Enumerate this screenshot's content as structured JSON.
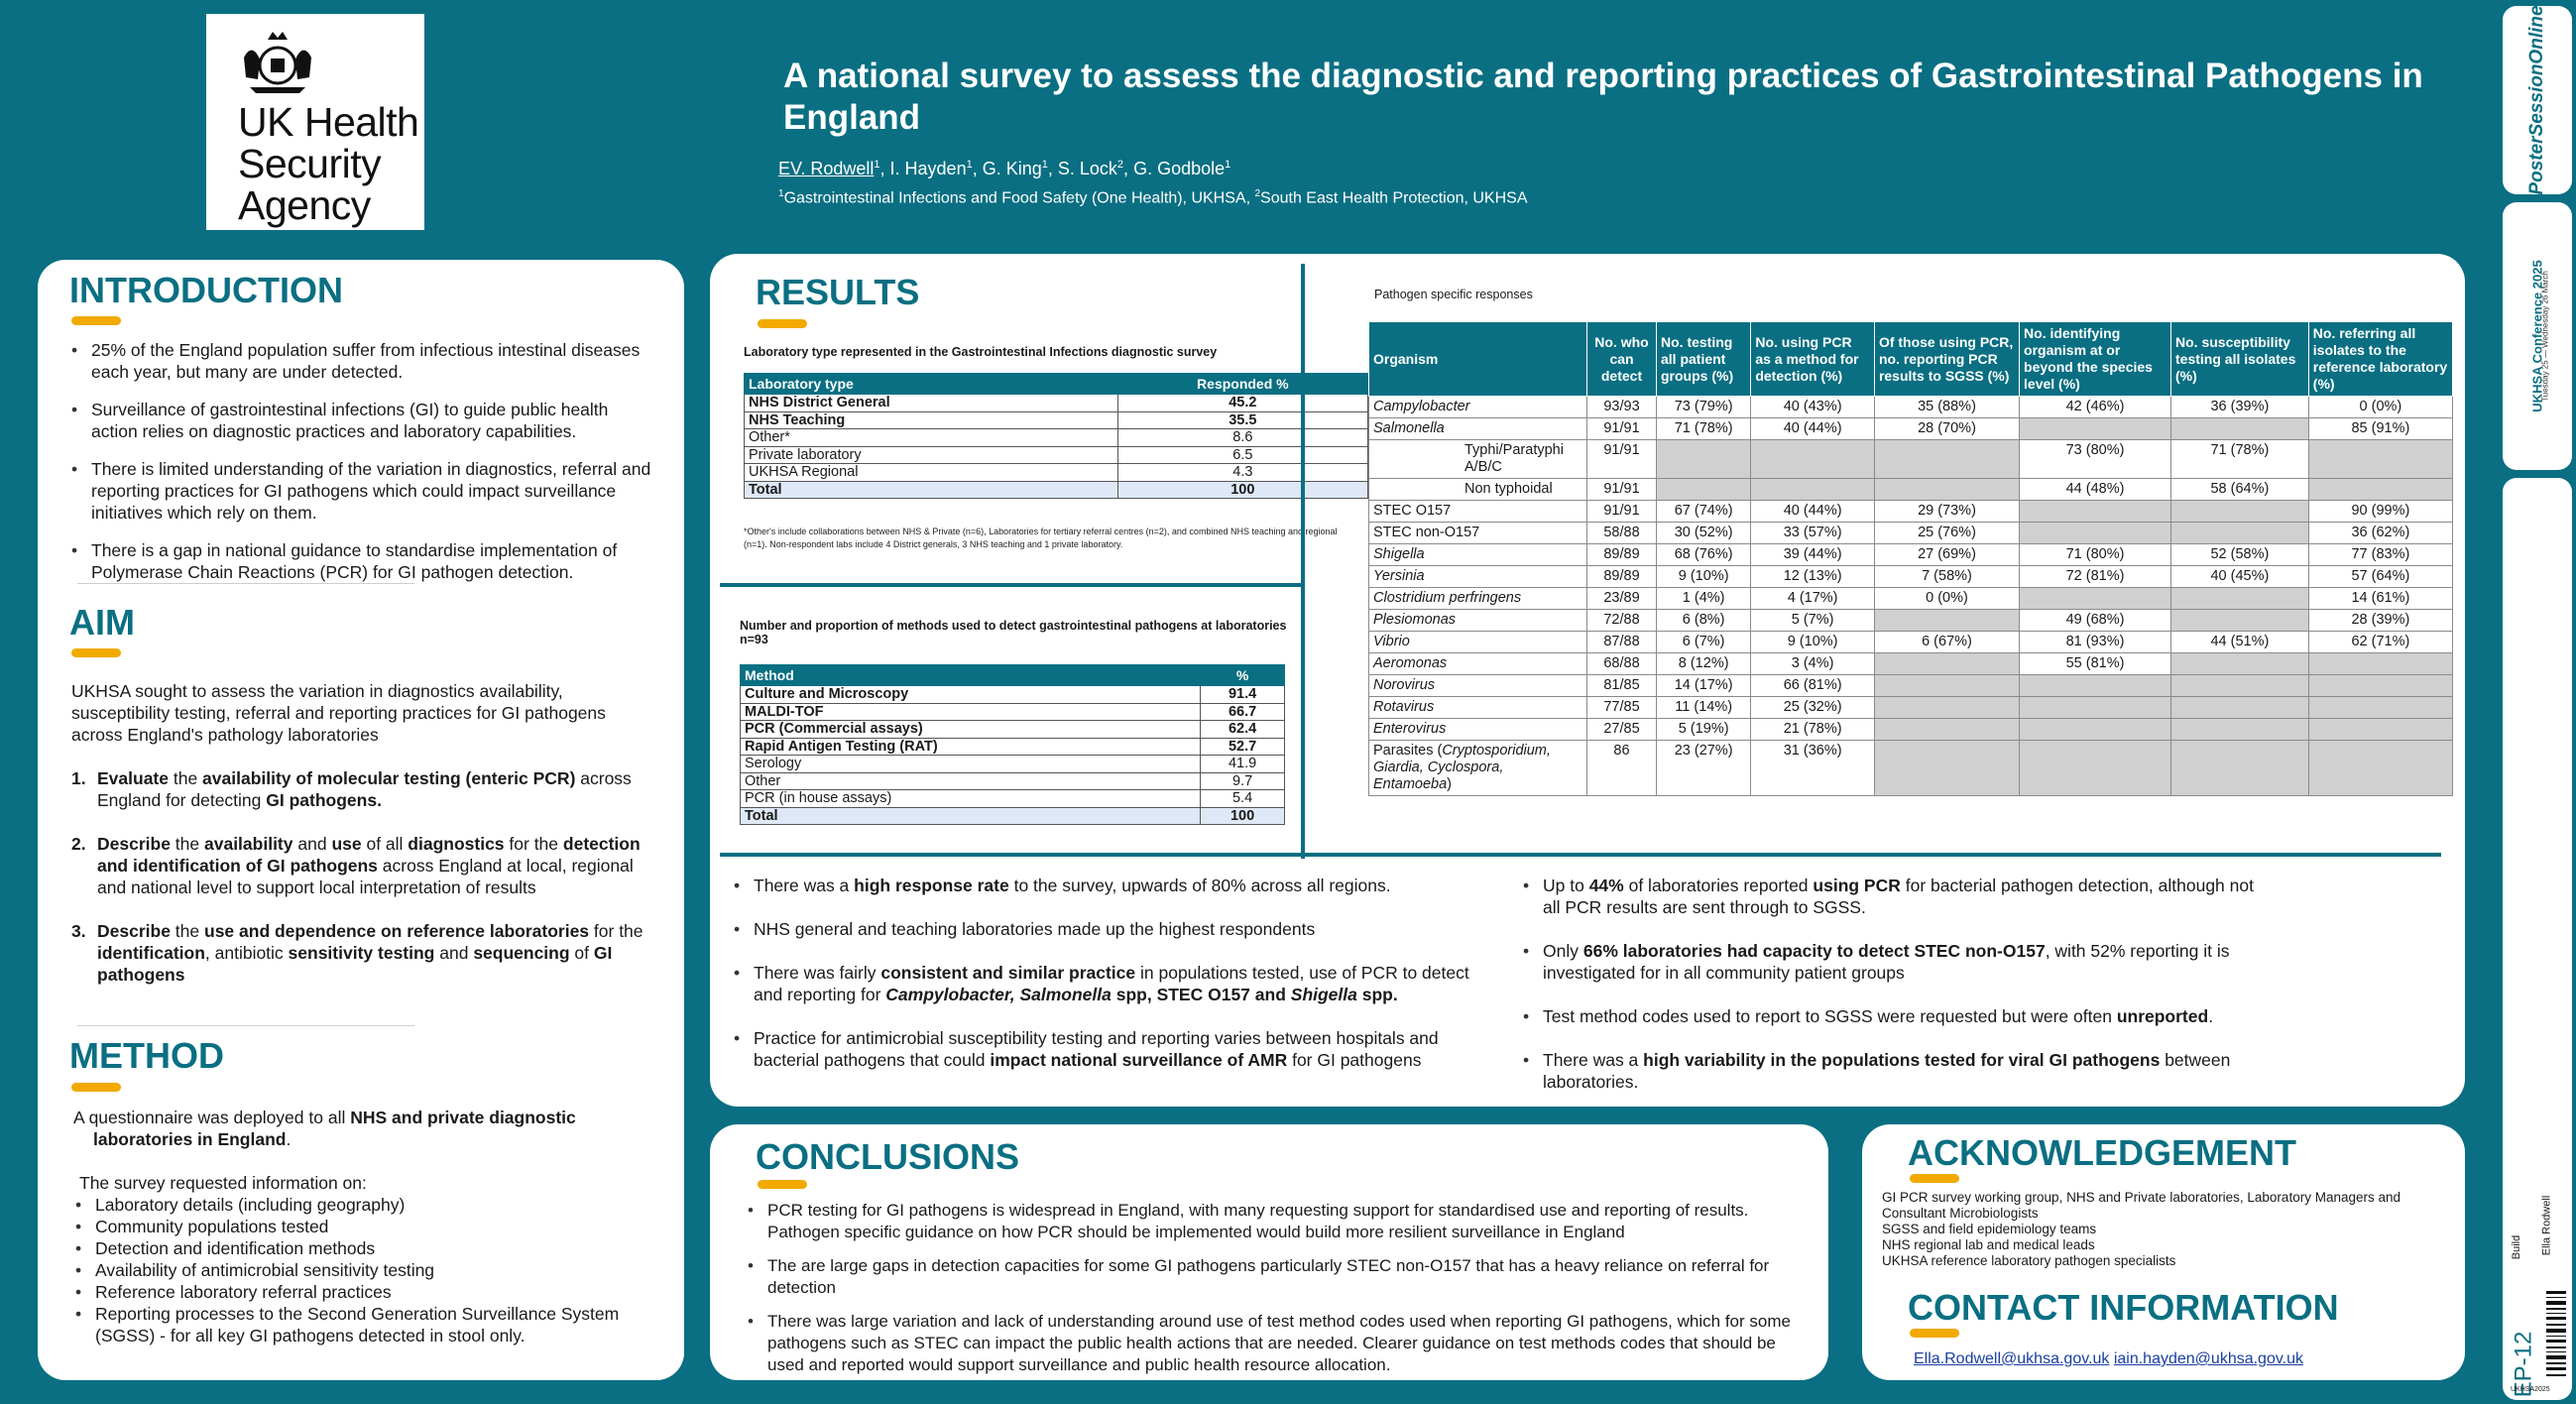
{
  "header": {
    "logo_text": "UK Health\nSecurity\nAgency",
    "title": "A national survey to assess the diagnostic and reporting practices of Gastrointestinal Pathogens in England",
    "authors": [
      {
        "name": "EV. Rodwell",
        "sup": "1"
      },
      {
        "name": "I. Hayden",
        "sup": "1"
      },
      {
        "name": "G. King",
        "sup": "1"
      },
      {
        "name": "S. Lock",
        "sup": "2"
      },
      {
        "name": "G. Godbole",
        "sup": "1"
      }
    ],
    "affiliations": [
      {
        "sup": "1",
        "text": "Gastrointestinal Infections and Food Safety (One Health), UKHSA, "
      },
      {
        "sup": "2",
        "text": "South East Health Protection, UKHSA"
      }
    ]
  },
  "introduction": {
    "heading": "INTRODUCTION",
    "bullets": [
      "25% of the England population suffer from infectious intestinal diseases each year, but many are under detected.",
      "Surveillance of gastrointestinal infections (GI) to guide public health action relies on diagnostic practices and laboratory capabilities.",
      "There is limited understanding of the variation in diagnostics, referral and reporting practices for GI pathogens which could impact surveillance initiatives which rely on them.",
      "There is a gap in national guidance to standardise implementation of Polymerase Chain Reactions (PCR) for GI pathogen detection."
    ]
  },
  "aim": {
    "heading": "AIM",
    "intro": "UKHSA sought to assess the variation in diagnostics availability, susceptibility testing, referral and reporting practices for GI pathogens across England's pathology laboratories",
    "items": [
      {
        "num": "1.",
        "parts": [
          [
            "b",
            "Evaluate"
          ],
          [
            "n",
            " the "
          ],
          [
            "b",
            "availability of molecular testing (enteric PCR)"
          ],
          [
            "n",
            " across England for detecting "
          ],
          [
            "b",
            "GI pathogens."
          ]
        ]
      },
      {
        "num": "2.",
        "parts": [
          [
            "b",
            "Describe"
          ],
          [
            "n",
            " the "
          ],
          [
            "b",
            "availability"
          ],
          [
            "n",
            " and "
          ],
          [
            "b",
            "use"
          ],
          [
            "n",
            " of all "
          ],
          [
            "b",
            "diagnostics"
          ],
          [
            "n",
            " for the "
          ],
          [
            "b",
            "detection and identification of GI pathogens"
          ],
          [
            "n",
            " across England at local, regional and national level to support local interpretation of results"
          ]
        ]
      },
      {
        "num": "3.",
        "parts": [
          [
            "b",
            "Describe"
          ],
          [
            "n",
            " the "
          ],
          [
            "b",
            "use and dependence on reference laboratories"
          ],
          [
            "n",
            " for the "
          ],
          [
            "b",
            "identification"
          ],
          [
            "n",
            ", antibiotic "
          ],
          [
            "b",
            "sensitivity testing"
          ],
          [
            "n",
            " and "
          ],
          [
            "b",
            "sequencing"
          ],
          [
            "n",
            " of "
          ],
          [
            "b",
            "GI pathogens"
          ]
        ]
      }
    ]
  },
  "method": {
    "heading": "METHOD",
    "p1_parts": [
      [
        "n",
        "A questionnaire was deployed to all "
      ],
      [
        "b",
        "NHS and private diagnostic laboratories in England"
      ],
      [
        "n",
        "."
      ]
    ],
    "p2": "The survey requested information on:",
    "items": [
      "Laboratory details (including geography)",
      "Community populations tested",
      "Detection and identification methods",
      "Availability of antimicrobial sensitivity testing",
      "Reference laboratory referral practices",
      "Reporting processes to the Second Generation Surveillance System (SGSS) - for all key GI pathogens detected in stool only."
    ]
  },
  "results": {
    "heading": "RESULTS",
    "table1": {
      "caption": "Laboratory type represented in the Gastrointestinal Infections diagnostic survey",
      "headers": [
        "Laboratory type",
        "Responded %"
      ],
      "rows": [
        {
          "label": "NHS District General",
          "value": "45.2",
          "bold": true
        },
        {
          "label": "NHS Teaching",
          "value": "35.5",
          "bold": true
        },
        {
          "label": "Other*",
          "value": "8.6"
        },
        {
          "label": "Private laboratory",
          "value": "6.5"
        },
        {
          "label": "UKHSA Regional",
          "value": "4.3"
        },
        {
          "label": "Total",
          "value": "100",
          "total": true
        }
      ],
      "footnote": "*Other's include collaborations between NHS & Private (n=6), Laboratories for tertiary referral centres (n=2), and combined NHS teaching and regional (n=1). Non-respondent labs include 4 District generals, 3 NHS teaching and 1 private laboratory."
    },
    "table2": {
      "caption": "Number and proportion of methods used to detect gastrointestinal pathogens at laboratories n=93",
      "headers": [
        "Method",
        "%"
      ],
      "rows": [
        {
          "label": "Culture and Microscopy",
          "value": "91.4",
          "bold": true
        },
        {
          "label": "MALDI-TOF",
          "value": "66.7",
          "bold": true
        },
        {
          "label": "PCR (Commercial assays)",
          "value": "62.4",
          "bold": true
        },
        {
          "label": "Rapid Antigen Testing (RAT)",
          "value": "52.7",
          "bold": true
        },
        {
          "label": "Serology",
          "value": "41.9"
        },
        {
          "label": "Other",
          "value": "9.7"
        },
        {
          "label": "PCR (in house assays)",
          "value": "5.4"
        },
        {
          "label": "Total",
          "value": "100",
          "total": true
        }
      ]
    },
    "table3": {
      "caption": "Pathogen specific responses",
      "headers": [
        "Organism",
        "No. who can detect",
        "No. testing all patient groups (%)",
        "No. using PCR as a method for detection (%)",
        "Of those using PCR, no. reporting PCR results to SGSS (%)",
        "No. identifying organism at or beyond the species level (%)",
        "No. susceptibility testing all isolates (%)",
        "No. referring all isolates to the reference laboratory (%)"
      ],
      "rows": [
        {
          "org": "Campylobacter",
          "italic": true,
          "cells": [
            "93/93",
            "73 (79%)",
            "40 (43%)",
            "35 (88%)",
            "42 (46%)",
            "36 (39%)",
            "0 (0%)"
          ]
        },
        {
          "org": "Salmonella",
          "italic": true,
          "cells": [
            "91/91",
            "71 (78%)",
            "40 (44%)",
            "28 (70%)",
            "",
            "",
            "85 (91%)"
          ]
        },
        {
          "org": "Typhi/Paratyphi A/B/C",
          "sub": true,
          "cells": [
            "91/91",
            "",
            "",
            "",
            "73 (80%)",
            "71 (78%)",
            ""
          ]
        },
        {
          "org": "Non typhoidal",
          "sub": true,
          "cells": [
            "91/91",
            "",
            "",
            "",
            "44 (48%)",
            "58 (64%)",
            ""
          ]
        },
        {
          "org": "STEC O157",
          "cells": [
            "91/91",
            "67 (74%)",
            "40 (44%)",
            "29 (73%)",
            "",
            "",
            "90 (99%)"
          ]
        },
        {
          "org": "STEC non-O157",
          "cells": [
            "58/88",
            "30 (52%)",
            "33 (57%)",
            "25 (76%)",
            "",
            "",
            "36 (62%)"
          ]
        },
        {
          "org": "Shigella",
          "italic": true,
          "cells": [
            "89/89",
            "68 (76%)",
            "39 (44%)",
            "27 (69%)",
            "71 (80%)",
            "52 (58%)",
            "77 (83%)"
          ]
        },
        {
          "org": "Yersinia",
          "italic": true,
          "cells": [
            "89/89",
            "9 (10%)",
            "12 (13%)",
            "7 (58%)",
            "72 (81%)",
            "40 (45%)",
            "57 (64%)"
          ]
        },
        {
          "org": "Clostridium perfringens",
          "italic": true,
          "cells": [
            "23/89",
            "1 (4%)",
            "4 (17%)",
            "0 (0%)",
            "",
            "",
            "14 (61%)"
          ]
        },
        {
          "org": "Plesiomonas",
          "italic": true,
          "cells": [
            "72/88",
            "6 (8%)",
            "5 (7%)",
            "",
            "49 (68%)",
            "",
            "28 (39%)"
          ]
        },
        {
          "org": "Vibrio",
          "italic": true,
          "cells": [
            "87/88",
            "6 (7%)",
            "9 (10%)",
            "6 (67%)",
            "81 (93%)",
            "44 (51%)",
            "62 (71%)"
          ]
        },
        {
          "org": "Aeromonas",
          "italic": true,
          "cells": [
            "68/88",
            "8 (12%)",
            "3 (4%)",
            "",
            "55 (81%)",
            "",
            ""
          ]
        },
        {
          "org": "Norovirus",
          "italic": true,
          "cells": [
            "81/85",
            "14 (17%)",
            "66 (81%)",
            "",
            "",
            "",
            ""
          ]
        },
        {
          "org": "Rotavirus",
          "italic": true,
          "cells": [
            "77/85",
            "11 (14%)",
            "25 (32%)",
            "",
            "",
            "",
            ""
          ]
        },
        {
          "org": "Enterovirus",
          "italic": true,
          "cells": [
            "27/85",
            "5 (19%)",
            "21 (78%)",
            "",
            "",
            "",
            ""
          ]
        },
        {
          "org": "Parasites (Cryptosporidium, Giardia, Cyclospora, Entamoeba)",
          "parasite": true,
          "cells": [
            "86",
            "23 (27%)",
            "31 (36%)",
            "",
            "",
            "",
            ""
          ]
        }
      ],
      "grey_cells": [
        [
          1,
          4
        ],
        [
          1,
          5
        ],
        [
          2,
          1
        ],
        [
          2,
          2
        ],
        [
          2,
          3
        ],
        [
          2,
          6
        ],
        [
          3,
          1
        ],
        [
          3,
          2
        ],
        [
          3,
          3
        ],
        [
          3,
          6
        ],
        [
          4,
          4
        ],
        [
          4,
          5
        ],
        [
          5,
          4
        ],
        [
          5,
          5
        ],
        [
          8,
          4
        ],
        [
          8,
          5
        ],
        [
          9,
          3
        ],
        [
          9,
          5
        ],
        [
          11,
          3
        ],
        [
          11,
          5
        ],
        [
          11,
          6
        ],
        [
          12,
          3
        ],
        [
          12,
          4
        ],
        [
          12,
          5
        ],
        [
          12,
          6
        ],
        [
          13,
          3
        ],
        [
          13,
          4
        ],
        [
          13,
          5
        ],
        [
          13,
          6
        ],
        [
          14,
          3
        ],
        [
          14,
          4
        ],
        [
          14,
          5
        ],
        [
          14,
          6
        ],
        [
          15,
          3
        ],
        [
          15,
          4
        ],
        [
          15,
          5
        ],
        [
          15,
          6
        ]
      ]
    },
    "findings_left": [
      [
        [
          "n",
          "There was a "
        ],
        [
          "b",
          "high response rate"
        ],
        [
          "n",
          " to the survey, upwards of 80% across all regions."
        ]
      ],
      [
        [
          "n",
          "NHS general and teaching laboratories made up the highest respondents"
        ]
      ],
      [
        [
          "n",
          "There was fairly "
        ],
        [
          "b",
          "consistent and similar practice"
        ],
        [
          "n",
          " in populations tested, use of PCR to detect and reporting for "
        ],
        [
          "bi",
          "Campylobacter, Salmonella"
        ],
        [
          "b",
          " spp, STEC O157 and "
        ],
        [
          "bi",
          "Shigella"
        ],
        [
          "b",
          " spp."
        ]
      ],
      [
        [
          "n",
          "Practice for antimicrobial susceptibility testing and reporting varies between hospitals and bacterial pathogens that could "
        ],
        [
          "b",
          "impact national surveillance of AMR"
        ],
        [
          "n",
          " for GI pathogens"
        ]
      ]
    ],
    "findings_right": [
      [
        [
          "n",
          "Up to "
        ],
        [
          "b",
          "44%"
        ],
        [
          "n",
          " of laboratories reported "
        ],
        [
          "b",
          "using PCR"
        ],
        [
          "n",
          " for bacterial pathogen detection, although not all PCR results are sent through to SGSS."
        ]
      ],
      [
        [
          "n",
          "Only "
        ],
        [
          "b",
          "66% laboratories had capacity to detect STEC non-O157"
        ],
        [
          "n",
          ", with 52% reporting it is investigated for in all community patient groups"
        ]
      ],
      [
        [
          "n",
          "Test method codes used to report to SGSS were requested but were often "
        ],
        [
          "b",
          "unreported"
        ],
        [
          "n",
          "."
        ]
      ],
      [
        [
          "n",
          "There was a "
        ],
        [
          "b",
          "high variability in the populations tested for viral GI pathogens"
        ],
        [
          "n",
          " between laboratories."
        ]
      ]
    ]
  },
  "conclusions": {
    "heading": "CONCLUSIONS",
    "bullets": [
      "PCR testing for GI pathogens is widespread in England, with many requesting support for standardised use and reporting of results. Pathogen specific guidance on how PCR should be implemented would build more resilient surveillance in England",
      "The are large gaps in detection capacities for some GI pathogens particularly STEC non-O157 that has a heavy reliance on referral for detection",
      "There was large variation and lack of understanding around use of test method codes used when reporting GI pathogens, which for some pathogens such as STEC can impact the public health actions that are needed. Clearer guidance on test methods codes that should be used and reported would support surveillance and public health resource allocation."
    ]
  },
  "acknowledgement": {
    "heading": "ACKNOWLEDGEMENT",
    "lines": [
      "GI PCR survey working group, NHS and Private laboratories, Laboratory Managers and Consultant Microbiologists",
      "SGSS and field epidemiology teams",
      "NHS regional lab and medical leads",
      "UKHSA reference laboratory pathogen specialists"
    ]
  },
  "contact": {
    "heading": "CONTACT INFORMATION",
    "emails": [
      "Ella.Rodwell@ukhsa.gov.uk",
      "iain.hayden@ukhsa.gov.uk"
    ]
  },
  "sidebar": {
    "brand": "PosterSessionOnline",
    "conference": "UKHSA Conference 2025",
    "conference_dates": "Tuesday 25 — Wednesday 26 March",
    "label_build": "Build",
    "label_author": "Ella Rodwell",
    "poster_id": "EP-12",
    "footer_code": "UKHSA2025"
  },
  "colors": {
    "teal": "#0a6f82",
    "accent": "#f2a900",
    "grey_cell": "#d0d0d0",
    "total_row": "#dfe8f7"
  }
}
